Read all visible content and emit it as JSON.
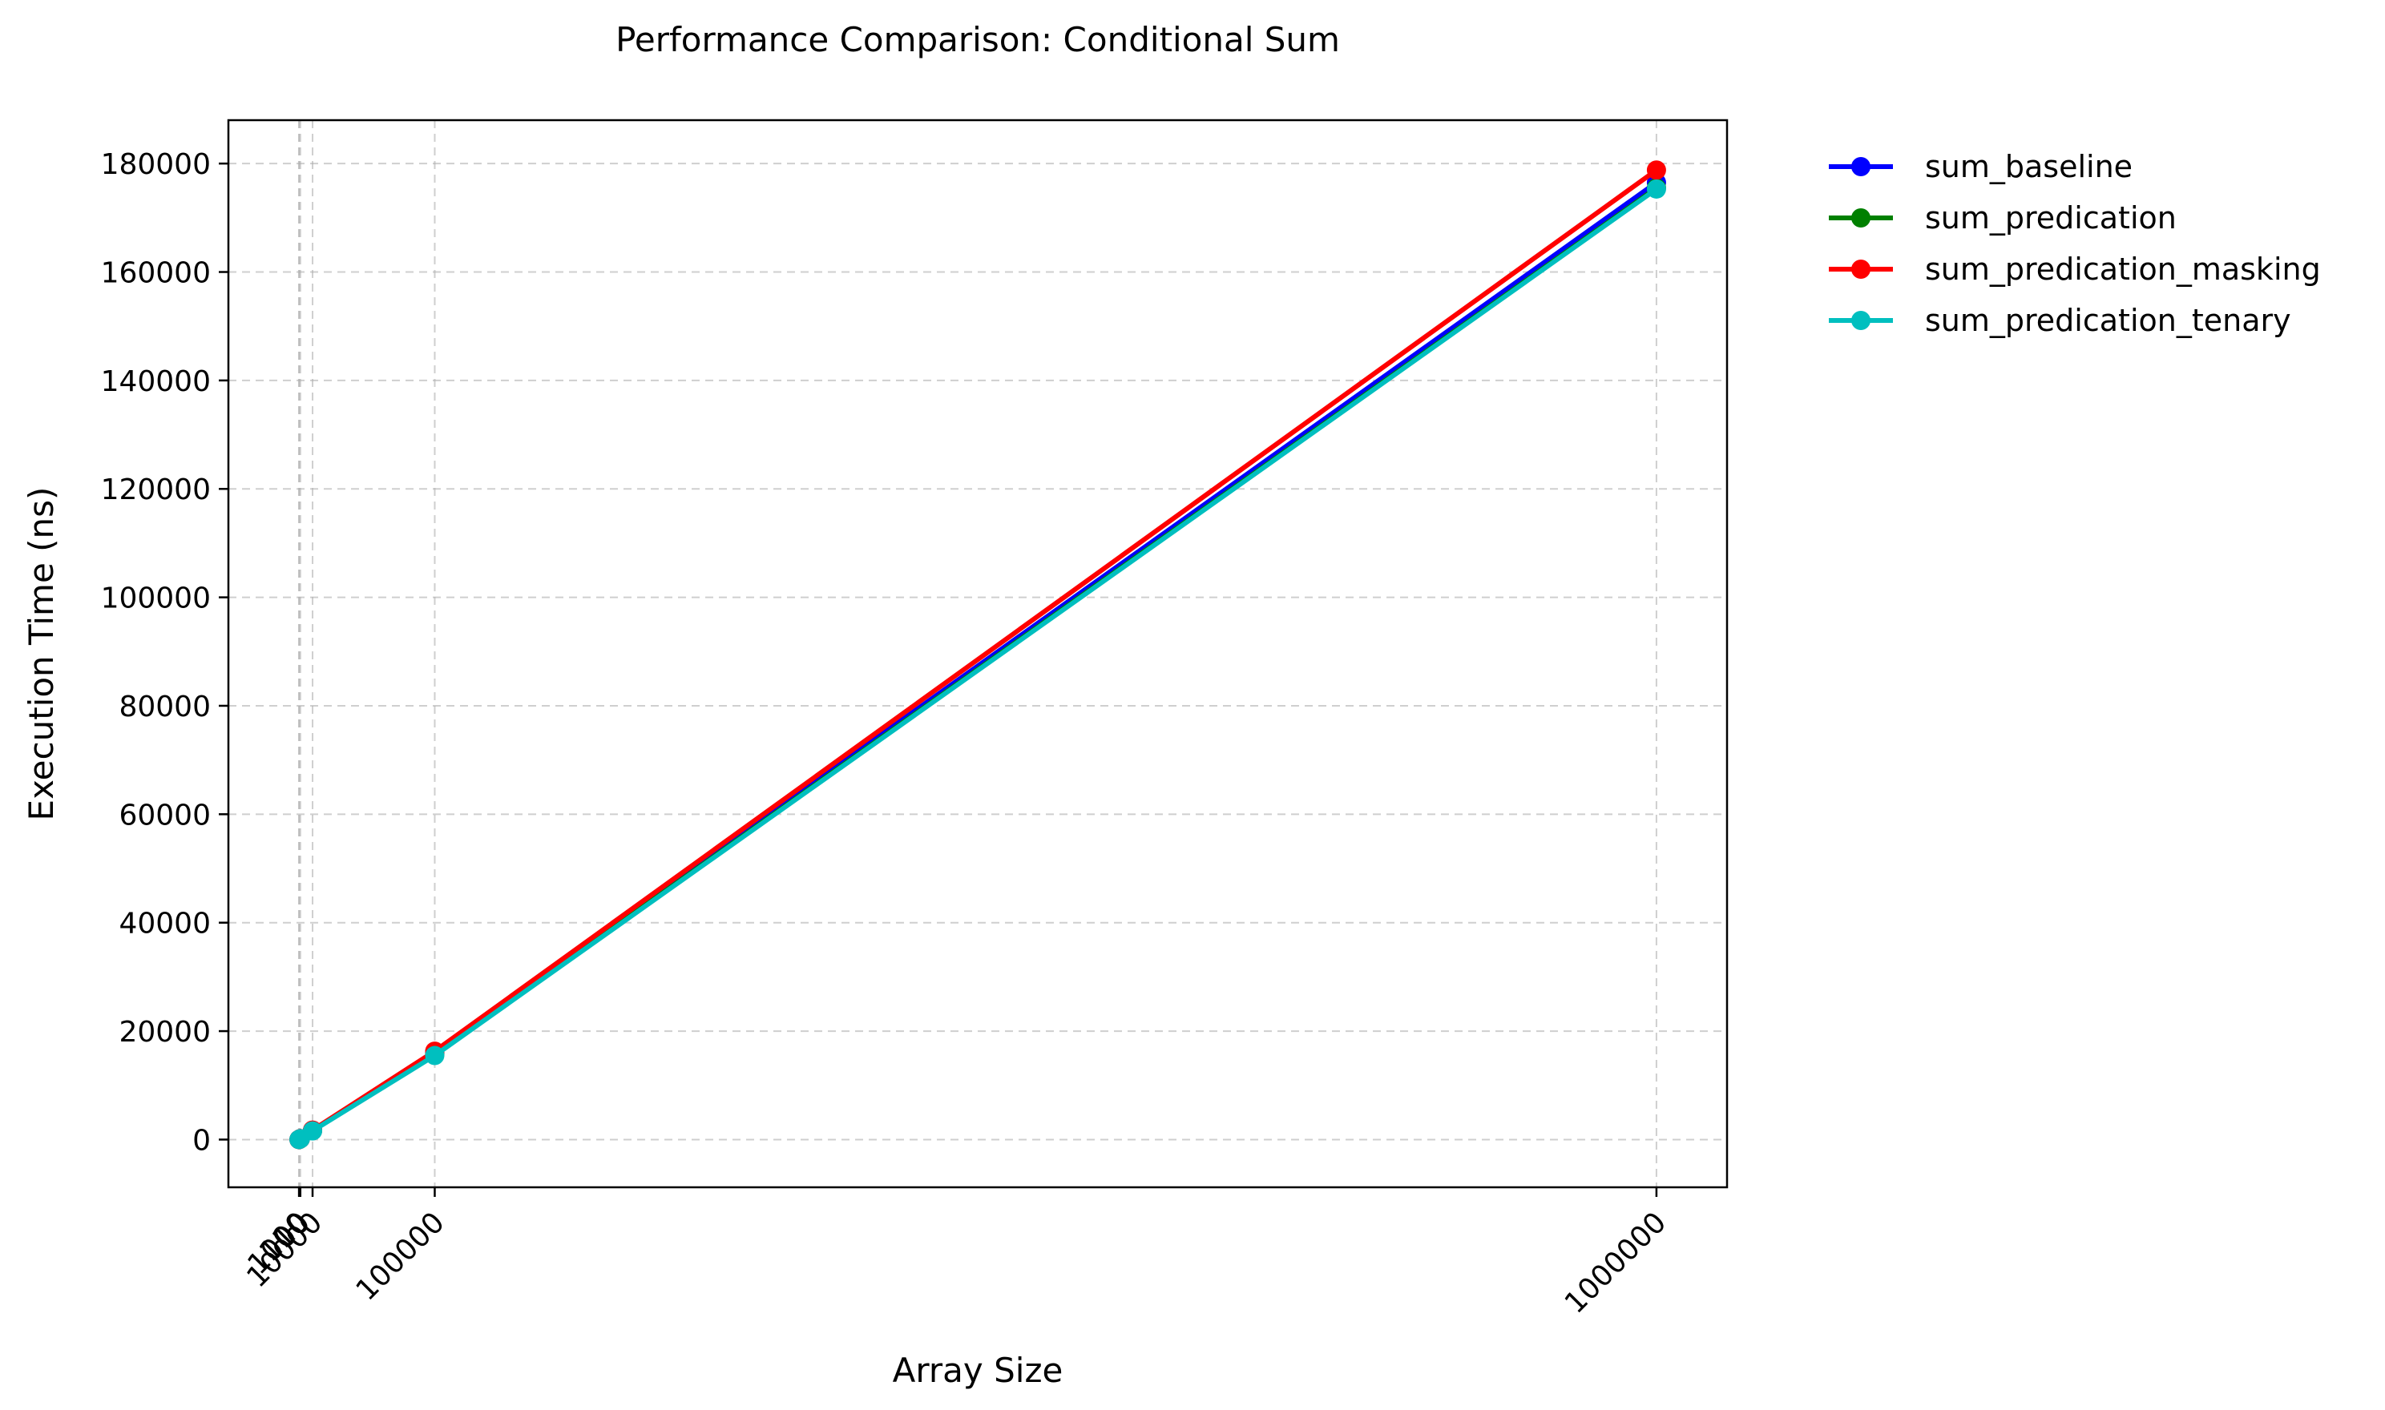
{
  "chart_data": {
    "type": "line",
    "title": "Performance Comparison: Conditional Sum",
    "xlabel": "Array Size",
    "ylabel": "Execution Time (ns)",
    "x": [
      10,
      100,
      1000,
      10000,
      100000,
      1000000
    ],
    "xticks": [
      10,
      100,
      1000,
      10000,
      100000,
      1000000
    ],
    "xtick_labels": [
      "10",
      "100",
      "1000",
      "10000",
      "100000",
      "1000000"
    ],
    "xtick_rotation": 45,
    "xlim": [
      -52000,
      1052000
    ],
    "yticks": [
      0,
      20000,
      40000,
      60000,
      80000,
      100000,
      120000,
      140000,
      160000,
      180000
    ],
    "ytick_labels": [
      "0",
      "20000",
      "40000",
      "60000",
      "80000",
      "100000",
      "120000",
      "140000",
      "160000",
      "180000"
    ],
    "ylim": [
      -8800,
      188000
    ],
    "grid": true,
    "grid_style": "dashed",
    "legend_position": "outside-top-right",
    "marker": "circle",
    "series": [
      {
        "name": "sum_baseline",
        "color": "#0000ff",
        "values": [
          5,
          20,
          170,
          1700,
          16000,
          176500
        ]
      },
      {
        "name": "sum_predication",
        "color": "#008000",
        "values": [
          5,
          19,
          165,
          1650,
          15700,
          175500
        ]
      },
      {
        "name": "sum_predication_masking",
        "color": "#ff0000",
        "values": [
          5,
          20,
          175,
          1750,
          16300,
          178800
        ]
      },
      {
        "name": "sum_predication_tenary",
        "color": "#00bfbf",
        "values": [
          5,
          19,
          160,
          1600,
          15500,
          175300
        ]
      }
    ]
  }
}
